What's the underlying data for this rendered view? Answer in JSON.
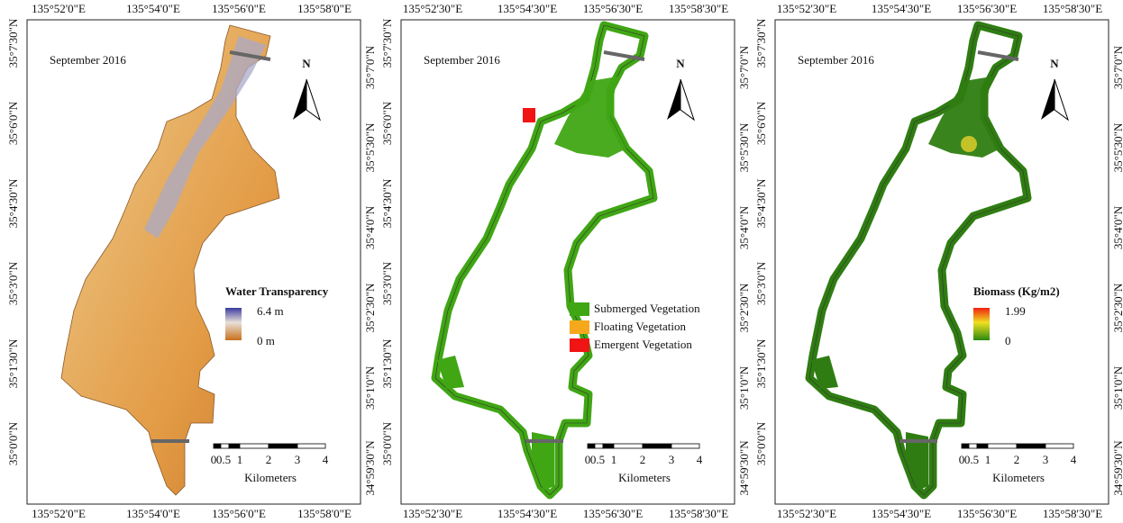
{
  "panels": [
    {
      "date": "September 2016",
      "north": "N",
      "top_labels": [
        "135°52'0\"E",
        "135°54'0\"E",
        "135°56'0\"E",
        "135°58'0\"E"
      ],
      "bottom_labels": [
        "135°52'0\"E",
        "135°54'0\"E",
        "135°56'0\"E",
        "135°58'0\"E"
      ],
      "left_labels": [
        "35°7'30\"N",
        "35°6'0\"N",
        "35°4'30\"N",
        "35°3'0\"N",
        "35°1'30\"N",
        "35°0'0\"N"
      ],
      "right_labels": [
        "35°7'0\"N",
        "35°5'30\"N",
        "35°4'0\"N",
        "35°2'30\"N",
        "35°1'0\"N",
        "34°59'30\"N"
      ],
      "legend": {
        "title": "Water Transparency",
        "high": "6.4 m",
        "low": "0 m"
      },
      "scale_labels": [
        "0",
        "0.5",
        "1",
        "2",
        "3",
        "4"
      ],
      "scale_unit": "Kilometers"
    },
    {
      "date": "September 2016",
      "north": "N",
      "top_labels": [
        "135°52'30\"E",
        "135°54'30\"E",
        "135°56'30\"E",
        "135°58'30\"E"
      ],
      "bottom_labels": [
        "135°52'30\"E",
        "135°54'30\"E",
        "135°56'30\"E",
        "135°58'30\"E"
      ],
      "left_labels": [
        "35°7'30\"N",
        "35°6'0\"N",
        "35°4'30\"N",
        "35°3'0\"N",
        "35°1'30\"N",
        "35°0'0\"N"
      ],
      "right_labels": [
        "35°7'0\"N",
        "35°5'30\"N",
        "35°4'0\"N",
        "35°2'30\"N",
        "35°1'0\"N",
        "34°59'30\"N"
      ],
      "legend": {
        "items": [
          {
            "label": "Submerged Vegetation",
            "color": "#40a614"
          },
          {
            "label": "Floating Vegetation",
            "color": "#f5a81c"
          },
          {
            "label": "Emergent Vegetation",
            "color": "#f01414"
          }
        ]
      },
      "scale_labels": [
        "0",
        "0.5",
        "1",
        "2",
        "3",
        "4"
      ],
      "scale_unit": "Kilometers"
    },
    {
      "date": "September 2016",
      "north": "N",
      "top_labels": [
        "135°52'30\"E",
        "135°54'30\"E",
        "135°56'30\"E",
        "135°58'30\"E"
      ],
      "bottom_labels": [
        "135°52'30\"E",
        "135°54'30\"E",
        "135°56'30\"E",
        "135°58'30\"E"
      ],
      "left_labels": [
        "35°7'30\"N",
        "35°6'0\"N",
        "35°4'30\"N",
        "35°3'0\"N",
        "35°1'30\"N",
        "35°0'0\"N"
      ],
      "right_labels": [
        "35°7'0\"N",
        "35°5'30\"N",
        "35°4'0\"N",
        "35°2'30\"N",
        "35°1'0\"N",
        "34°59'30\"N"
      ],
      "legend": {
        "title": "Biomass (Kg/m2)",
        "high": "1.99",
        "low": "0"
      },
      "scale_labels": [
        "0",
        "0.5",
        "1",
        "2",
        "3",
        "4"
      ],
      "scale_unit": "Kilometers"
    }
  ]
}
